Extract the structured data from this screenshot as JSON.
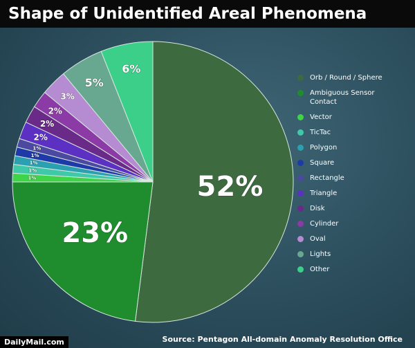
{
  "chart_data": {
    "type": "pie",
    "title": "Shape of Unidentified Areal Phenomena",
    "categories": [
      "Orb / Round / Sphere",
      "Ambiguous Sensor Contact",
      "Vector",
      "TicTac",
      "Polygon",
      "Square",
      "Rectangle",
      "Triangle",
      "Disk",
      "Cylinder",
      "Oval",
      "Lights",
      "Other"
    ],
    "values": [
      52,
      23,
      1,
      1,
      1,
      1,
      1,
      2,
      2,
      2,
      3,
      5,
      6
    ],
    "value_labels": [
      "52%",
      "23%",
      "1%",
      "1%",
      "1%",
      "1%",
      "1%",
      "2%",
      "2%",
      "2%",
      "3%",
      "5%",
      "6%"
    ],
    "colors": [
      "#3d6a3f",
      "#1f8d2e",
      "#3fd34a",
      "#3fc9a8",
      "#2aa0b0",
      "#1e3aa8",
      "#4b4aa0",
      "#5b30c2",
      "#6a2a88",
      "#8c3aa6",
      "#b58bd2",
      "#68a890",
      "#3ccf8a"
    ],
    "legend": "right",
    "source": "Source: Pentagon All-domain Anomaly Resolution Office",
    "brand": "DailyMail.com"
  }
}
